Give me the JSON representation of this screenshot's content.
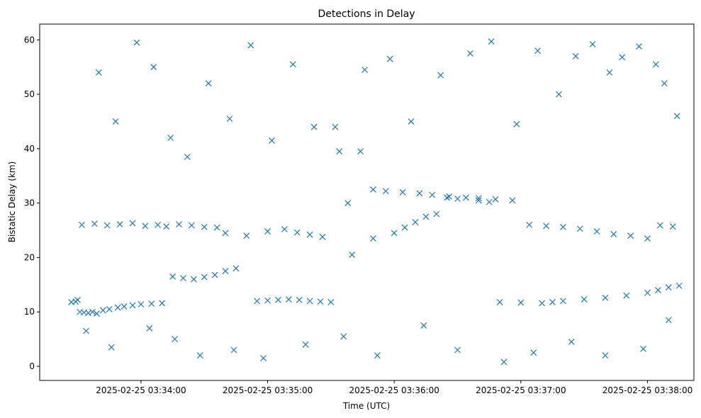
{
  "chart_data": {
    "type": "scatter",
    "title": "Detections in Delay",
    "xlabel": "Time (UTC)",
    "ylabel": "Bistatic Delay (km)",
    "marker": "x",
    "color": "#1f77b4",
    "grid": false,
    "legend": "none",
    "xlim": [
      "2025-02-25 03:33:12",
      "2025-02-25 03:38:22"
    ],
    "ylim": [
      -2.6,
      62.9
    ],
    "xticks": [
      "2025-02-25 03:34:00",
      "2025-02-25 03:35:00",
      "2025-02-25 03:36:00",
      "2025-02-25 03:37:00",
      "2025-02-25 03:38:00"
    ],
    "yticks": [
      "0",
      "10",
      "20",
      "30",
      "40",
      "50",
      "60"
    ],
    "series": [
      {
        "x": [
          "2025-02-25 03:33:27",
          "2025-02-25 03:33:29",
          "2025-02-25 03:33:30",
          "2025-02-25 03:33:31",
          "2025-02-25 03:33:33",
          "2025-02-25 03:33:35",
          "2025-02-25 03:33:37",
          "2025-02-25 03:33:39",
          "2025-02-25 03:33:42",
          "2025-02-25 03:33:45",
          "2025-02-25 03:33:49",
          "2025-02-25 03:33:52",
          "2025-02-25 03:33:56",
          "2025-02-25 03:34:00",
          "2025-02-25 03:34:05",
          "2025-02-25 03:34:10",
          "2025-02-25 03:34:15",
          "2025-02-25 03:34:20",
          "2025-02-25 03:34:25",
          "2025-02-25 03:34:30",
          "2025-02-25 03:34:35",
          "2025-02-25 03:34:40",
          "2025-02-25 03:34:45",
          "2025-02-25 03:34:55",
          "2025-02-25 03:35:00",
          "2025-02-25 03:35:05",
          "2025-02-25 03:35:10",
          "2025-02-25 03:35:15",
          "2025-02-25 03:35:20",
          "2025-02-25 03:35:25",
          "2025-02-25 03:35:30",
          "2025-02-25 03:35:40",
          "2025-02-25 03:35:50",
          "2025-02-25 03:36:00",
          "2025-02-25 03:36:05",
          "2025-02-25 03:36:10",
          "2025-02-25 03:36:15",
          "2025-02-25 03:36:20",
          "2025-02-25 03:36:25",
          "2025-02-25 03:36:30",
          "2025-02-25 03:36:40",
          "2025-02-25 03:36:45",
          "2025-02-25 03:36:50",
          "2025-02-25 03:37:00",
          "2025-02-25 03:37:10",
          "2025-02-25 03:37:15",
          "2025-02-25 03:37:20",
          "2025-02-25 03:37:30",
          "2025-02-25 03:37:40",
          "2025-02-25 03:37:50",
          "2025-02-25 03:38:00",
          "2025-02-25 03:38:05",
          "2025-02-25 03:38:10",
          "2025-02-25 03:38:15",
          "2025-02-25 03:33:32",
          "2025-02-25 03:33:38",
          "2025-02-25 03:33:44",
          "2025-02-25 03:33:50",
          "2025-02-25 03:33:56",
          "2025-02-25 03:34:02",
          "2025-02-25 03:34:08",
          "2025-02-25 03:34:12",
          "2025-02-25 03:34:18",
          "2025-02-25 03:34:24",
          "2025-02-25 03:34:30",
          "2025-02-25 03:34:36",
          "2025-02-25 03:34:40",
          "2025-02-25 03:34:50",
          "2025-02-25 03:35:00",
          "2025-02-25 03:35:08",
          "2025-02-25 03:35:14",
          "2025-02-25 03:35:20",
          "2025-02-25 03:35:26",
          "2025-02-25 03:35:32",
          "2025-02-25 03:35:38",
          "2025-02-25 03:35:44",
          "2025-02-25 03:35:50",
          "2025-02-25 03:35:56",
          "2025-02-25 03:36:04",
          "2025-02-25 03:36:12",
          "2025-02-25 03:36:18",
          "2025-02-25 03:36:26",
          "2025-02-25 03:36:34",
          "2025-02-25 03:36:40",
          "2025-02-25 03:36:48",
          "2025-02-25 03:36:56",
          "2025-02-25 03:37:04",
          "2025-02-25 03:37:12",
          "2025-02-25 03:37:20",
          "2025-02-25 03:37:28",
          "2025-02-25 03:37:36",
          "2025-02-25 03:37:44",
          "2025-02-25 03:37:52",
          "2025-02-25 03:38:00",
          "2025-02-25 03:38:06",
          "2025-02-25 03:38:12",
          "2025-02-25 03:33:40",
          "2025-02-25 03:33:48",
          "2025-02-25 03:33:58",
          "2025-02-25 03:34:06",
          "2025-02-25 03:34:14",
          "2025-02-25 03:34:22",
          "2025-02-25 03:34:32",
          "2025-02-25 03:34:42",
          "2025-02-25 03:34:52",
          "2025-02-25 03:35:02",
          "2025-02-25 03:35:12",
          "2025-02-25 03:35:22",
          "2025-02-25 03:35:34",
          "2025-02-25 03:35:46",
          "2025-02-25 03:35:58",
          "2025-02-25 03:36:08",
          "2025-02-25 03:36:22",
          "2025-02-25 03:36:36",
          "2025-02-25 03:36:46",
          "2025-02-25 03:36:58",
          "2025-02-25 03:37:08",
          "2025-02-25 03:37:18",
          "2025-02-25 03:37:26",
          "2025-02-25 03:37:34",
          "2025-02-25 03:37:42",
          "2025-02-25 03:37:48",
          "2025-02-25 03:37:56",
          "2025-02-25 03:38:04",
          "2025-02-25 03:38:08",
          "2025-02-25 03:38:14",
          "2025-02-25 03:33:34",
          "2025-02-25 03:33:46",
          "2025-02-25 03:34:04",
          "2025-02-25 03:34:16",
          "2025-02-25 03:34:28",
          "2025-02-25 03:34:44",
          "2025-02-25 03:34:58",
          "2025-02-25 03:35:18",
          "2025-02-25 03:35:36",
          "2025-02-25 03:35:52",
          "2025-02-25 03:36:14",
          "2025-02-25 03:36:30",
          "2025-02-25 03:36:52",
          "2025-02-25 03:37:06",
          "2025-02-25 03:37:24",
          "2025-02-25 03:37:40",
          "2025-02-25 03:37:58",
          "2025-02-25 03:38:10"
        ],
        "y": [
          11.8,
          11.9,
          12.2,
          10.0,
          9.9,
          9.8,
          10.0,
          9.7,
          10.3,
          10.5,
          10.8,
          11.0,
          11.2,
          11.4,
          11.5,
          11.6,
          16.5,
          16.2,
          16.0,
          16.4,
          16.8,
          17.5,
          18.0,
          12.0,
          12.1,
          12.2,
          12.3,
          12.2,
          12.0,
          11.9,
          11.8,
          20.5,
          23.5,
          24.5,
          25.5,
          26.5,
          27.5,
          28.0,
          31.0,
          30.8,
          30.5,
          30.2,
          11.8,
          11.7,
          11.6,
          11.8,
          12.0,
          12.3,
          12.6,
          13.0,
          13.5,
          14.0,
          14.5,
          14.8,
          26.0,
          26.2,
          25.9,
          26.1,
          26.3,
          25.8,
          26.0,
          25.7,
          26.1,
          25.9,
          25.6,
          25.5,
          24.5,
          24.0,
          24.8,
          25.2,
          24.6,
          24.2,
          23.8,
          44.0,
          30.0,
          39.5,
          32.5,
          32.2,
          32.0,
          31.8,
          31.5,
          31.2,
          31.0,
          30.9,
          30.7,
          30.5,
          26.0,
          25.8,
          25.6,
          25.3,
          24.8,
          24.3,
          24.0,
          23.5,
          25.9,
          25.7,
          54.0,
          45.0,
          59.5,
          55.0,
          42.0,
          38.5,
          52.0,
          45.5,
          59.0,
          41.5,
          55.5,
          44.0,
          39.5,
          54.5,
          56.5,
          45.0,
          53.5,
          57.5,
          59.7,
          44.5,
          58.0,
          50.0,
          57.0,
          59.2,
          54.0,
          56.8,
          58.8,
          55.5,
          52.0,
          46.0,
          6.5,
          3.5,
          7.0,
          5.0,
          2.0,
          3.0,
          1.5,
          4.0,
          5.5,
          2.0,
          7.5,
          3.0,
          0.8,
          2.5,
          4.5,
          2.0,
          3.2,
          8.5
        ]
      }
    ]
  }
}
